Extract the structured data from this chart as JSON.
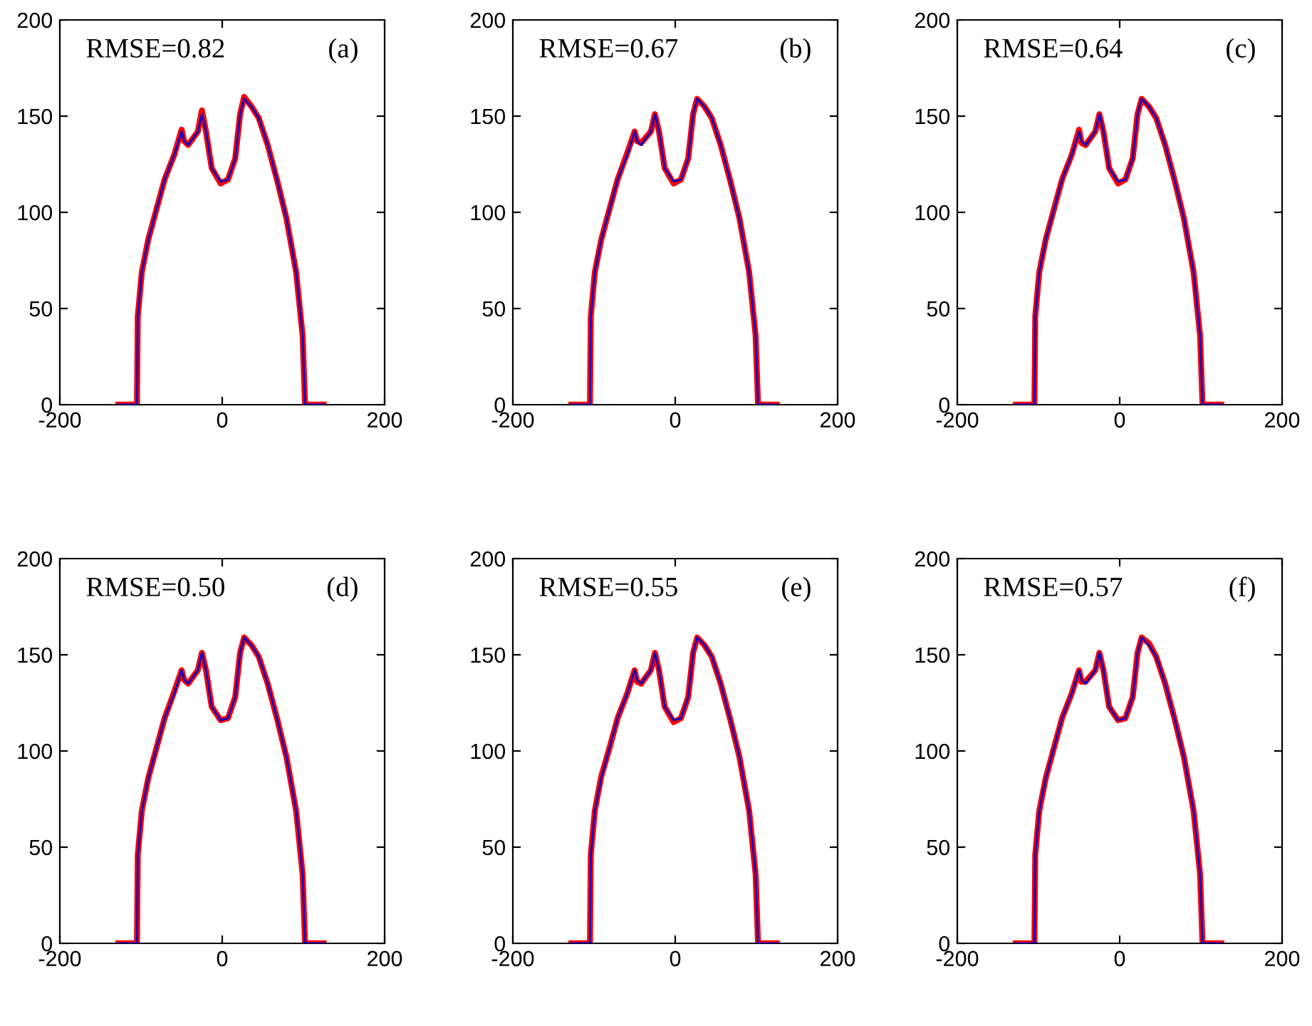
{
  "chart_data": [
    {
      "type": "line",
      "annotations": [
        "RMSE=0.82",
        "(a)"
      ],
      "xlim": [
        -200,
        200
      ],
      "xticks": [
        -200,
        0,
        200
      ],
      "ylim": [
        0,
        200
      ],
      "yticks": [
        0,
        50,
        100,
        150,
        200
      ],
      "grid": false,
      "line_style": "solid",
      "x": [
        -128,
        -105,
        -104,
        -99,
        -91,
        -82,
        -71,
        -59,
        -50,
        -47,
        -42,
        -30,
        -25,
        -20,
        -13,
        -2,
        7,
        16,
        22,
        27,
        36,
        45,
        56,
        68,
        79,
        91,
        99,
        102,
        125
      ],
      "series": [
        {
          "color": "#ff0000",
          "values": [
            0,
            0,
            46,
            69,
            86,
            100,
            117,
            130,
            143,
            137,
            135,
            142,
            153,
            142,
            123,
            115,
            117,
            128,
            151,
            160,
            155,
            149,
            135,
            116,
            97,
            69,
            36,
            0,
            0
          ]
        },
        {
          "color": "#0000cc",
          "values": [
            0,
            0,
            46,
            69,
            86,
            100,
            117,
            130,
            142,
            137,
            135,
            142,
            151,
            142,
            123,
            116,
            117,
            128,
            151,
            159,
            155,
            149,
            135,
            116,
            97,
            69,
            36,
            0,
            0
          ]
        }
      ]
    },
    {
      "type": "line",
      "annotations": [
        "RMSE=0.67",
        "(b)"
      ],
      "xlim": [
        -200,
        200
      ],
      "xticks": [
        -200,
        0,
        200
      ],
      "ylim": [
        0,
        200
      ],
      "yticks": [
        0,
        50,
        100,
        150,
        200
      ],
      "grid": false,
      "line_style": "solid",
      "x": [
        -128,
        -105,
        -104,
        -99,
        -91,
        -82,
        -71,
        -59,
        -50,
        -47,
        -42,
        -30,
        -25,
        -20,
        -13,
        -2,
        7,
        16,
        22,
        27,
        36,
        45,
        56,
        68,
        79,
        91,
        99,
        102,
        125
      ],
      "series": [
        {
          "color": "#ff0000",
          "values": [
            0,
            0,
            46,
            69,
            86,
            100,
            117,
            131,
            142,
            137,
            136,
            142,
            151,
            142,
            123,
            115,
            117,
            128,
            151,
            159,
            155,
            149,
            135,
            116,
            97,
            69,
            36,
            0,
            0
          ]
        },
        {
          "color": "#0000cc",
          "values": [
            0,
            0,
            46,
            69,
            86,
            100,
            117,
            130,
            142,
            137,
            135,
            142,
            151,
            142,
            123,
            116,
            117,
            128,
            151,
            159,
            155,
            149,
            135,
            116,
            97,
            69,
            36,
            0,
            0
          ]
        }
      ]
    },
    {
      "type": "line",
      "annotations": [
        "RMSE=0.64",
        "(c)"
      ],
      "xlim": [
        -200,
        200
      ],
      "xticks": [
        -200,
        0,
        200
      ],
      "ylim": [
        0,
        200
      ],
      "yticks": [
        0,
        50,
        100,
        150,
        200
      ],
      "grid": false,
      "line_style": "solid",
      "x": [
        -128,
        -105,
        -104,
        -99,
        -91,
        -82,
        -71,
        -59,
        -50,
        -47,
        -42,
        -30,
        -25,
        -20,
        -13,
        -2,
        7,
        16,
        22,
        27,
        36,
        45,
        56,
        68,
        79,
        91,
        99,
        102,
        125
      ],
      "series": [
        {
          "color": "#ff0000",
          "values": [
            0,
            0,
            46,
            69,
            86,
            100,
            117,
            130,
            143,
            136,
            135,
            142,
            151,
            142,
            123,
            115,
            117,
            128,
            151,
            159,
            155,
            149,
            135,
            116,
            97,
            69,
            36,
            0,
            0
          ]
        },
        {
          "color": "#0000cc",
          "values": [
            0,
            0,
            46,
            69,
            86,
            100,
            117,
            130,
            142,
            137,
            135,
            142,
            151,
            142,
            123,
            116,
            117,
            128,
            151,
            159,
            155,
            149,
            135,
            116,
            97,
            69,
            36,
            0,
            0
          ]
        }
      ]
    },
    {
      "type": "line",
      "annotations": [
        "RMSE=0.50",
        "(d)"
      ],
      "xlim": [
        -200,
        200
      ],
      "xticks": [
        -200,
        0,
        200
      ],
      "ylim": [
        0,
        200
      ],
      "yticks": [
        0,
        50,
        100,
        150,
        200
      ],
      "grid": false,
      "line_style": "solid",
      "x": [
        -128,
        -105,
        -104,
        -99,
        -91,
        -82,
        -71,
        -59,
        -50,
        -47,
        -42,
        -30,
        -25,
        -20,
        -13,
        -2,
        7,
        16,
        22,
        27,
        36,
        45,
        56,
        68,
        79,
        91,
        99,
        102,
        125
      ],
      "series": [
        {
          "color": "#ff0000",
          "values": [
            0,
            0,
            46,
            69,
            86,
            100,
            117,
            131,
            142,
            137,
            135,
            142,
            151,
            142,
            123,
            116,
            117,
            128,
            151,
            159,
            155,
            149,
            135,
            116,
            97,
            69,
            36,
            0,
            0
          ]
        },
        {
          "color": "#0000cc",
          "values": [
            0,
            0,
            46,
            69,
            86,
            100,
            117,
            130,
            142,
            137,
            135,
            142,
            151,
            142,
            123,
            116,
            117,
            128,
            151,
            159,
            155,
            149,
            135,
            116,
            97,
            69,
            36,
            0,
            0
          ]
        }
      ]
    },
    {
      "type": "line",
      "annotations": [
        "RMSE=0.55",
        "(e)"
      ],
      "xlim": [
        -200,
        200
      ],
      "xticks": [
        -200,
        0,
        200
      ],
      "ylim": [
        0,
        200
      ],
      "yticks": [
        0,
        50,
        100,
        150,
        200
      ],
      "grid": false,
      "line_style": "solid",
      "x": [
        -128,
        -105,
        -104,
        -99,
        -91,
        -82,
        -71,
        -59,
        -50,
        -47,
        -42,
        -30,
        -25,
        -20,
        -13,
        -2,
        7,
        16,
        22,
        27,
        36,
        45,
        56,
        68,
        79,
        91,
        99,
        102,
        125
      ],
      "series": [
        {
          "color": "#ff0000",
          "values": [
            0,
            0,
            46,
            69,
            87,
            100,
            117,
            130,
            142,
            136,
            135,
            142,
            151,
            142,
            123,
            115,
            117,
            128,
            151,
            159,
            155,
            149,
            135,
            116,
            97,
            69,
            36,
            0,
            0
          ]
        },
        {
          "color": "#0000cc",
          "values": [
            0,
            0,
            46,
            69,
            86,
            100,
            117,
            130,
            142,
            137,
            135,
            142,
            151,
            142,
            123,
            116,
            117,
            128,
            151,
            159,
            155,
            149,
            135,
            116,
            97,
            69,
            36,
            0,
            0
          ]
        }
      ]
    },
    {
      "type": "line",
      "annotations": [
        "RMSE=0.57",
        "(f)"
      ],
      "xlim": [
        -200,
        200
      ],
      "xticks": [
        -200,
        0,
        200
      ],
      "ylim": [
        0,
        200
      ],
      "yticks": [
        0,
        50,
        100,
        150,
        200
      ],
      "grid": false,
      "line_style": "solid",
      "x": [
        -128,
        -105,
        -104,
        -99,
        -91,
        -82,
        -71,
        -59,
        -50,
        -47,
        -42,
        -30,
        -25,
        -20,
        -13,
        -2,
        7,
        16,
        22,
        27,
        36,
        45,
        56,
        68,
        79,
        91,
        99,
        102,
        125
      ],
      "series": [
        {
          "color": "#ff0000",
          "values": [
            0,
            0,
            46,
            69,
            86,
            100,
            117,
            130,
            142,
            136,
            136,
            142,
            151,
            142,
            123,
            116,
            117,
            128,
            151,
            159,
            156,
            149,
            135,
            116,
            97,
            69,
            36,
            0,
            0
          ]
        },
        {
          "color": "#0000cc",
          "values": [
            0,
            0,
            46,
            69,
            86,
            100,
            117,
            130,
            142,
            137,
            135,
            142,
            151,
            142,
            123,
            116,
            117,
            128,
            151,
            159,
            155,
            149,
            135,
            116,
            97,
            69,
            36,
            0,
            0
          ]
        }
      ]
    }
  ]
}
